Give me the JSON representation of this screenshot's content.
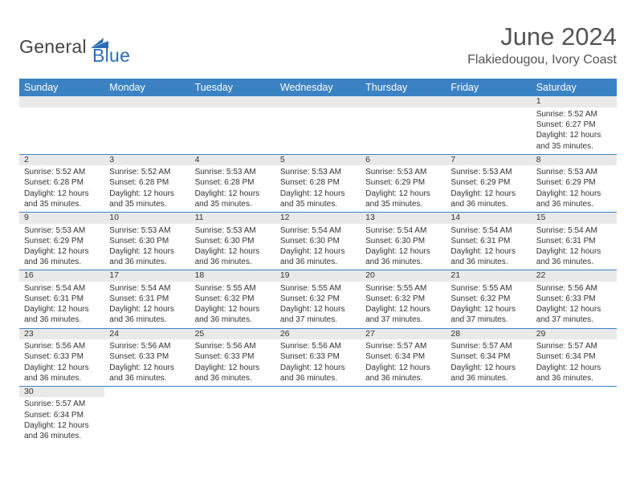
{
  "logo": {
    "text1": "General",
    "text2": "Blue",
    "shape_color": "#2a6db4"
  },
  "title": "June 2024",
  "location": "Flakiedougou, Ivory Coast",
  "header_bg": "#3a82c4",
  "header_fg": "#ffffff",
  "daynum_bg": "#e9e9e9",
  "rule_color": "#3a82c4",
  "text_color": "#333333",
  "font_size_day": 10,
  "days_of_week": [
    "Sunday",
    "Monday",
    "Tuesday",
    "Wednesday",
    "Thursday",
    "Friday",
    "Saturday"
  ],
  "weeks": [
    [
      null,
      null,
      null,
      null,
      null,
      null,
      {
        "n": "1",
        "sunrise": "5:52 AM",
        "sunset": "6:27 PM",
        "dl": "12 hours and 35 minutes."
      }
    ],
    [
      {
        "n": "2",
        "sunrise": "5:52 AM",
        "sunset": "6:28 PM",
        "dl": "12 hours and 35 minutes."
      },
      {
        "n": "3",
        "sunrise": "5:52 AM",
        "sunset": "6:28 PM",
        "dl": "12 hours and 35 minutes."
      },
      {
        "n": "4",
        "sunrise": "5:53 AM",
        "sunset": "6:28 PM",
        "dl": "12 hours and 35 minutes."
      },
      {
        "n": "5",
        "sunrise": "5:53 AM",
        "sunset": "6:28 PM",
        "dl": "12 hours and 35 minutes."
      },
      {
        "n": "6",
        "sunrise": "5:53 AM",
        "sunset": "6:29 PM",
        "dl": "12 hours and 35 minutes."
      },
      {
        "n": "7",
        "sunrise": "5:53 AM",
        "sunset": "6:29 PM",
        "dl": "12 hours and 36 minutes."
      },
      {
        "n": "8",
        "sunrise": "5:53 AM",
        "sunset": "6:29 PM",
        "dl": "12 hours and 36 minutes."
      }
    ],
    [
      {
        "n": "9",
        "sunrise": "5:53 AM",
        "sunset": "6:29 PM",
        "dl": "12 hours and 36 minutes."
      },
      {
        "n": "10",
        "sunrise": "5:53 AM",
        "sunset": "6:30 PM",
        "dl": "12 hours and 36 minutes."
      },
      {
        "n": "11",
        "sunrise": "5:53 AM",
        "sunset": "6:30 PM",
        "dl": "12 hours and 36 minutes."
      },
      {
        "n": "12",
        "sunrise": "5:54 AM",
        "sunset": "6:30 PM",
        "dl": "12 hours and 36 minutes."
      },
      {
        "n": "13",
        "sunrise": "5:54 AM",
        "sunset": "6:30 PM",
        "dl": "12 hours and 36 minutes."
      },
      {
        "n": "14",
        "sunrise": "5:54 AM",
        "sunset": "6:31 PM",
        "dl": "12 hours and 36 minutes."
      },
      {
        "n": "15",
        "sunrise": "5:54 AM",
        "sunset": "6:31 PM",
        "dl": "12 hours and 36 minutes."
      }
    ],
    [
      {
        "n": "16",
        "sunrise": "5:54 AM",
        "sunset": "6:31 PM",
        "dl": "12 hours and 36 minutes."
      },
      {
        "n": "17",
        "sunrise": "5:54 AM",
        "sunset": "6:31 PM",
        "dl": "12 hours and 36 minutes."
      },
      {
        "n": "18",
        "sunrise": "5:55 AM",
        "sunset": "6:32 PM",
        "dl": "12 hours and 36 minutes."
      },
      {
        "n": "19",
        "sunrise": "5:55 AM",
        "sunset": "6:32 PM",
        "dl": "12 hours and 37 minutes."
      },
      {
        "n": "20",
        "sunrise": "5:55 AM",
        "sunset": "6:32 PM",
        "dl": "12 hours and 37 minutes."
      },
      {
        "n": "21",
        "sunrise": "5:55 AM",
        "sunset": "6:32 PM",
        "dl": "12 hours and 37 minutes."
      },
      {
        "n": "22",
        "sunrise": "5:56 AM",
        "sunset": "6:33 PM",
        "dl": "12 hours and 37 minutes."
      }
    ],
    [
      {
        "n": "23",
        "sunrise": "5:56 AM",
        "sunset": "6:33 PM",
        "dl": "12 hours and 36 minutes."
      },
      {
        "n": "24",
        "sunrise": "5:56 AM",
        "sunset": "6:33 PM",
        "dl": "12 hours and 36 minutes."
      },
      {
        "n": "25",
        "sunrise": "5:56 AM",
        "sunset": "6:33 PM",
        "dl": "12 hours and 36 minutes."
      },
      {
        "n": "26",
        "sunrise": "5:56 AM",
        "sunset": "6:33 PM",
        "dl": "12 hours and 36 minutes."
      },
      {
        "n": "27",
        "sunrise": "5:57 AM",
        "sunset": "6:34 PM",
        "dl": "12 hours and 36 minutes."
      },
      {
        "n": "28",
        "sunrise": "5:57 AM",
        "sunset": "6:34 PM",
        "dl": "12 hours and 36 minutes."
      },
      {
        "n": "29",
        "sunrise": "5:57 AM",
        "sunset": "6:34 PM",
        "dl": "12 hours and 36 minutes."
      }
    ],
    [
      {
        "n": "30",
        "sunrise": "5:57 AM",
        "sunset": "6:34 PM",
        "dl": "12 hours and 36 minutes."
      },
      null,
      null,
      null,
      null,
      null,
      null
    ]
  ],
  "labels": {
    "sunrise": "Sunrise:",
    "sunset": "Sunset:",
    "daylight": "Daylight:"
  }
}
